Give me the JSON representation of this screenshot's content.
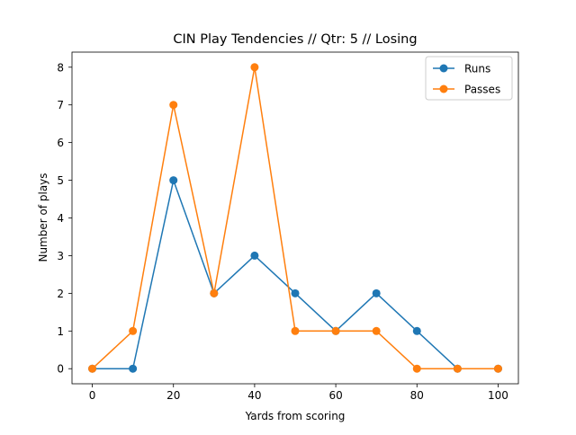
{
  "chart_data": {
    "type": "line",
    "title": "CIN Play Tendencies // Qtr: 5 // Losing",
    "xlabel": "Yards from scoring",
    "ylabel": "Number of plays",
    "x": [
      0,
      10,
      20,
      30,
      40,
      50,
      60,
      70,
      80,
      90,
      100
    ],
    "xlim": [
      -5,
      105
    ],
    "ylim": [
      -0.4,
      8.4
    ],
    "xticks": [
      "0",
      "20",
      "40",
      "60",
      "80",
      "100"
    ],
    "yticks": [
      "0",
      "1",
      "2",
      "3",
      "4",
      "5",
      "6",
      "7",
      "8"
    ],
    "grid": false,
    "legend_position": "top-right",
    "series": [
      {
        "name": "Runs",
        "color": "#1f77b4",
        "values": [
          0,
          0,
          5,
          2,
          3,
          2,
          1,
          2,
          1,
          0,
          0
        ]
      },
      {
        "name": "Passes",
        "color": "#ff7f0e",
        "values": [
          0,
          1,
          7,
          2,
          8,
          1,
          1,
          1,
          0,
          0,
          0
        ]
      }
    ]
  }
}
